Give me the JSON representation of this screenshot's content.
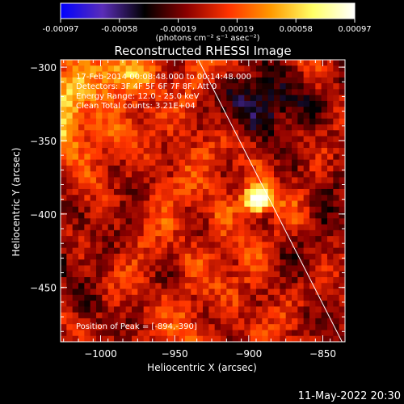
{
  "chart_data": {
    "type": "heatmap",
    "title": "Reconstructed RHESSI Image",
    "colorbar": {
      "unit_label": "(photons cm⁻² s⁻¹ asec⁻²)",
      "ticks": [
        "-0.00097",
        "-0.00058",
        "-0.00019",
        "0.00019",
        "0.00058",
        "0.00097"
      ],
      "range": [
        -0.00097,
        0.00097
      ],
      "colors": [
        "#0000ff",
        "#5a2db8",
        "#000000",
        "#8b0000",
        "#ff3300",
        "#ff9900",
        "#ffff66",
        "#ffffff"
      ]
    },
    "xlabel": "Heliocentric X (arcsec)",
    "ylabel": "Heliocentric Y (arcsec)",
    "xlim": [
      -1027,
      -835
    ],
    "ylim": [
      -487,
      -295
    ],
    "xticks": [
      {
        "value": -1000,
        "label": "−1000"
      },
      {
        "value": -950,
        "label": "−950"
      },
      {
        "value": -900,
        "label": "−900"
      },
      {
        "value": -850,
        "label": "−850"
      }
    ],
    "yticks": [
      {
        "value": -300,
        "label": "−300"
      },
      {
        "value": -350,
        "label": "−350"
      },
      {
        "value": -400,
        "label": "−400"
      },
      {
        "value": -450,
        "label": "−450"
      }
    ],
    "annotations": [
      "17-Feb-2014 00:08:48.000 to 00:14:48.000",
      "Detectors: 3F 4F 5F 6F 7F 8F, Att 0",
      "Energy Range: 12.0 - 25.0 keV",
      "Clean    Total counts: 3.21E+04"
    ],
    "peak_label": "Position of Peak = [-894,-390]",
    "peak": {
      "x": -894,
      "y": -390
    },
    "limb_line": [
      {
        "x": -934,
        "y": -295
      },
      {
        "x": -837,
        "y": -487
      }
    ],
    "timestamp": "11-May-2022 20:30"
  }
}
